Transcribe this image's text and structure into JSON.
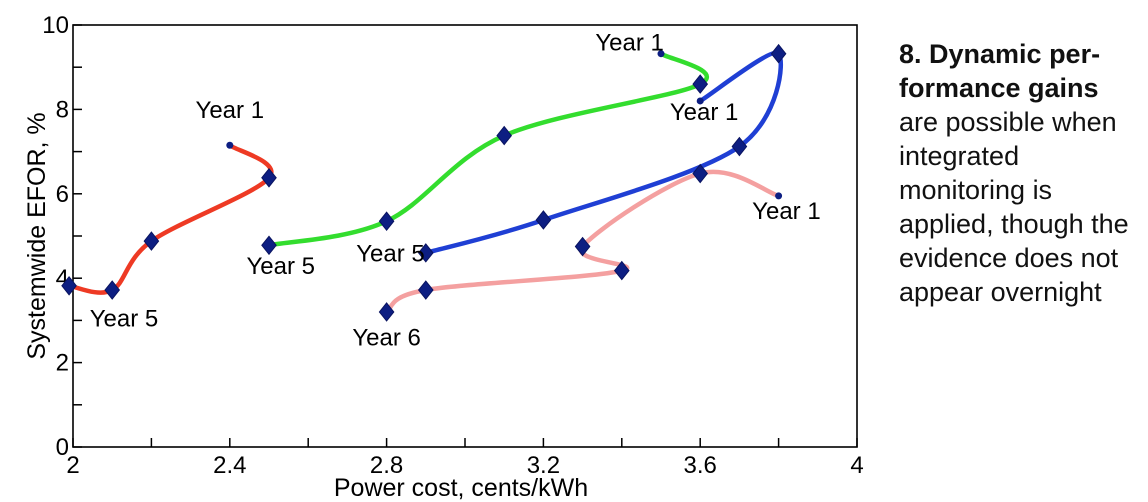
{
  "caption": {
    "heading": "8. Dynamic per-formance gains",
    "body": "are possible when integrated monitoring is applied, though the evidence does not appear overnight"
  },
  "chart_data": {
    "type": "line",
    "xlabel": "Power cost, cents/kWh",
    "ylabel": "Systemwide EFOR, %",
    "xlim": [
      2,
      4
    ],
    "ylim": [
      0,
      10
    ],
    "x_ticks": [
      2,
      2.4,
      2.8,
      3.2,
      3.6,
      4
    ],
    "x_tick_labels": [
      "2",
      "2.4",
      "2.8",
      "3.2",
      "3.6",
      "4"
    ],
    "y_ticks": [
      0,
      2,
      4,
      6,
      8,
      10
    ],
    "y_tick_labels": [
      "0",
      "2",
      "4",
      "6",
      "8",
      "10"
    ],
    "grid": false,
    "legend": "none",
    "series": [
      {
        "color": "#ee3a24",
        "points": [
          [
            2.4,
            7.15
          ],
          [
            2.5,
            6.38
          ],
          [
            2.2,
            4.88
          ],
          [
            2.1,
            3.72
          ],
          [
            1.99,
            3.82
          ]
        ],
        "markers": [
          false,
          true,
          true,
          true,
          true
        ]
      },
      {
        "color": "#33dd2e",
        "points": [
          [
            3.5,
            9.32
          ],
          [
            3.6,
            8.6
          ],
          [
            3.1,
            7.38
          ],
          [
            2.8,
            5.35
          ],
          [
            2.5,
            4.78
          ]
        ],
        "markers": [
          false,
          true,
          true,
          true,
          true
        ]
      },
      {
        "color": "#1f3fd4",
        "points": [
          [
            3.6,
            8.2
          ],
          [
            3.8,
            9.32
          ],
          [
            3.7,
            7.12
          ],
          [
            3.2,
            5.38
          ],
          [
            2.9,
            4.6
          ]
        ],
        "markers": [
          false,
          true,
          true,
          true,
          true
        ]
      },
      {
        "color": "#f4a0a0",
        "points": [
          [
            3.8,
            5.95
          ],
          [
            3.6,
            6.48
          ],
          [
            3.3,
            4.75
          ],
          [
            3.4,
            4.18
          ],
          [
            2.9,
            3.72
          ],
          [
            2.8,
            3.2
          ]
        ],
        "markers": [
          false,
          true,
          true,
          true,
          true,
          true
        ]
      }
    ],
    "annotations": [
      {
        "text": "Year 1",
        "x": 2.4,
        "y": 7.8
      },
      {
        "text": "Year 5",
        "x": 2.13,
        "y": 2.85
      },
      {
        "text": "Year 1",
        "x": 3.42,
        "y": 9.4
      },
      {
        "text": "Year 5",
        "x": 2.53,
        "y": 4.1
      },
      {
        "text": "Year 1",
        "x": 3.61,
        "y": 7.75
      },
      {
        "text": "Year 5",
        "x": 2.81,
        "y": 4.4
      },
      {
        "text": "Year 1",
        "x": 3.82,
        "y": 5.4
      },
      {
        "text": "Year 6",
        "x": 2.8,
        "y": 2.4
      }
    ]
  }
}
